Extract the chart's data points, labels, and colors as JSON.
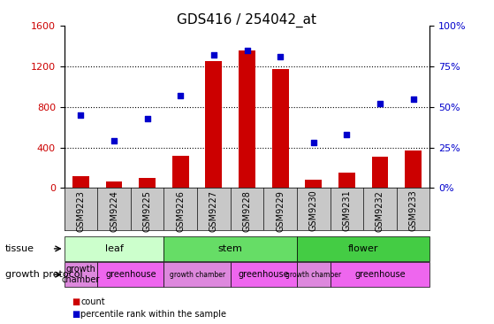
{
  "title": "GDS416 / 254042_at",
  "samples": [
    "GSM9223",
    "GSM9224",
    "GSM9225",
    "GSM9226",
    "GSM9227",
    "GSM9228",
    "GSM9229",
    "GSM9230",
    "GSM9231",
    "GSM9232",
    "GSM9233"
  ],
  "counts": [
    120,
    60,
    100,
    320,
    1250,
    1360,
    1170,
    80,
    150,
    310,
    370
  ],
  "percentiles": [
    45,
    29,
    43,
    57,
    82,
    85,
    81,
    28,
    33,
    52,
    55
  ],
  "ylim_left": [
    0,
    1600
  ],
  "ylim_right": [
    0,
    100
  ],
  "yticks_left": [
    0,
    400,
    800,
    1200,
    1600
  ],
  "yticks_right": [
    0,
    25,
    50,
    75,
    100
  ],
  "bar_color": "#CC0000",
  "dot_color": "#0000CC",
  "tissue_groups": [
    {
      "label": "leaf",
      "start": 0,
      "end": 3,
      "color": "#ccffcc"
    },
    {
      "label": "stem",
      "start": 3,
      "end": 7,
      "color": "#66dd66"
    },
    {
      "label": "flower",
      "start": 7,
      "end": 11,
      "color": "#44cc44"
    }
  ],
  "protocol_groups": [
    {
      "label": "growth\nchamber",
      "start": 0,
      "end": 1,
      "color": "#dd88dd"
    },
    {
      "label": "greenhouse",
      "start": 1,
      "end": 3,
      "color": "#ee66ee"
    },
    {
      "label": "growth chamber",
      "start": 3,
      "end": 5,
      "color": "#dd88dd"
    },
    {
      "label": "greenhouse",
      "start": 5,
      "end": 7,
      "color": "#ee66ee"
    },
    {
      "label": "growth chamber",
      "start": 7,
      "end": 8,
      "color": "#dd88dd"
    },
    {
      "label": "greenhouse",
      "start": 8,
      "end": 11,
      "color": "#ee66ee"
    }
  ],
  "tissue_label": "tissue",
  "protocol_label": "growth protocol",
  "legend_count": "count",
  "legend_pct": "percentile rank within the sample",
  "dotted_gridlines": [
    400,
    800,
    1200
  ],
  "background_color": "#ffffff",
  "plot_bg": "#ffffff",
  "sample_label_bg": "#c8c8c8"
}
